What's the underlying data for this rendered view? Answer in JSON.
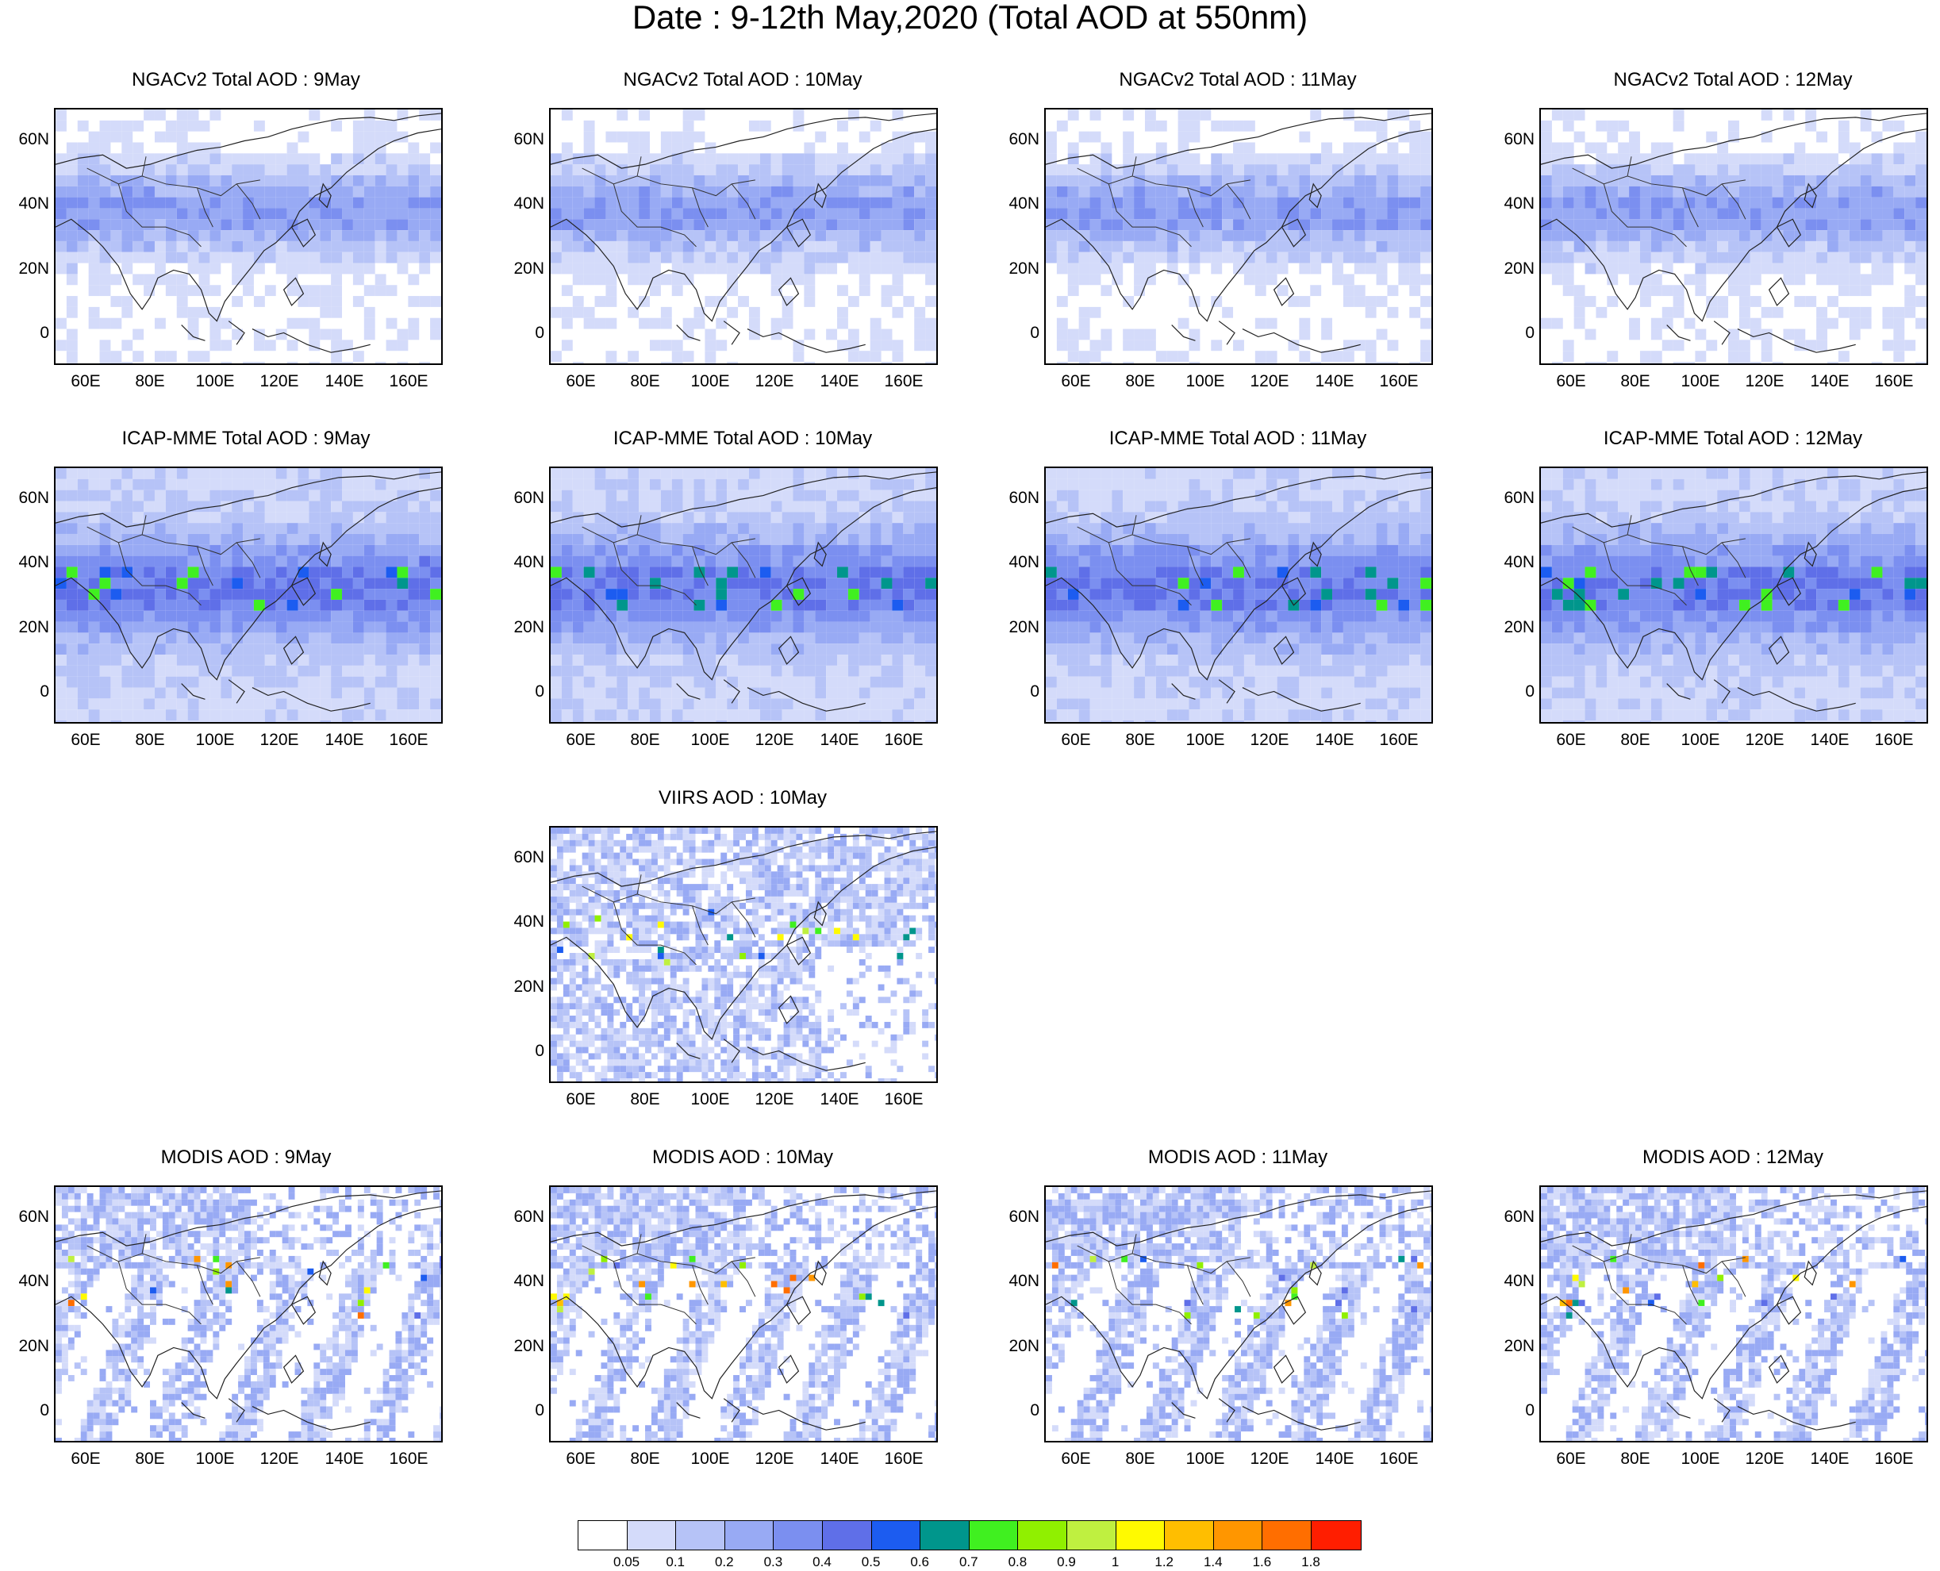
{
  "title": "Date : 9-12th May,2020 (Total AOD at 550nm)",
  "axes": {
    "y_ticks": [
      "60N",
      "40N",
      "20N",
      "0"
    ],
    "x_ticks": [
      "60E",
      "80E",
      "100E",
      "120E",
      "140E",
      "160E"
    ]
  },
  "panels": [
    {
      "id": "ngac-9",
      "title": "NGACv2 Total AOD : 9May",
      "kind": "model"
    },
    {
      "id": "ngac-10",
      "title": "NGACv2 Total AOD : 10May",
      "kind": "model"
    },
    {
      "id": "ngac-11",
      "title": "NGACv2 Total AOD : 11May",
      "kind": "model"
    },
    {
      "id": "ngac-12",
      "title": "NGACv2 Total AOD : 12May",
      "kind": "model"
    },
    {
      "id": "icap-9",
      "title": "ICAP-MME Total AOD : 9May",
      "kind": "ensemble"
    },
    {
      "id": "icap-10",
      "title": "ICAP-MME Total AOD : 10May",
      "kind": "ensemble"
    },
    {
      "id": "icap-11",
      "title": "ICAP-MME Total AOD : 11May",
      "kind": "ensemble"
    },
    {
      "id": "icap-12",
      "title": "ICAP-MME Total AOD : 12May",
      "kind": "ensemble"
    },
    {
      "id": "viirs-10",
      "title": "VIIRS AOD : 10May",
      "kind": "satellite"
    },
    {
      "id": "modis-9",
      "title": "MODIS AOD : 9May",
      "kind": "swath"
    },
    {
      "id": "modis-10",
      "title": "MODIS AOD : 10May",
      "kind": "swath"
    },
    {
      "id": "modis-11",
      "title": "MODIS AOD : 11May",
      "kind": "swath"
    },
    {
      "id": "modis-12",
      "title": "MODIS AOD : 12May",
      "kind": "swath"
    }
  ],
  "colorbar": {
    "colors": [
      "#ffffff",
      "#d4dbfa",
      "#b6c3f7",
      "#98aaf4",
      "#7b8ff0",
      "#5f6fe8",
      "#1c5cf0",
      "#00968c",
      "#40f020",
      "#90f000",
      "#bff040",
      "#fffa00",
      "#ffbe00",
      "#ff9600",
      "#ff6e00",
      "#ff1e00"
    ],
    "labels": [
      "0.05",
      "0.1",
      "0.2",
      "0.3",
      "0.4",
      "0.5",
      "0.6",
      "0.7",
      "0.8",
      "0.9",
      "1",
      "1.2",
      "1.4",
      "1.6",
      "1.8"
    ]
  }
}
